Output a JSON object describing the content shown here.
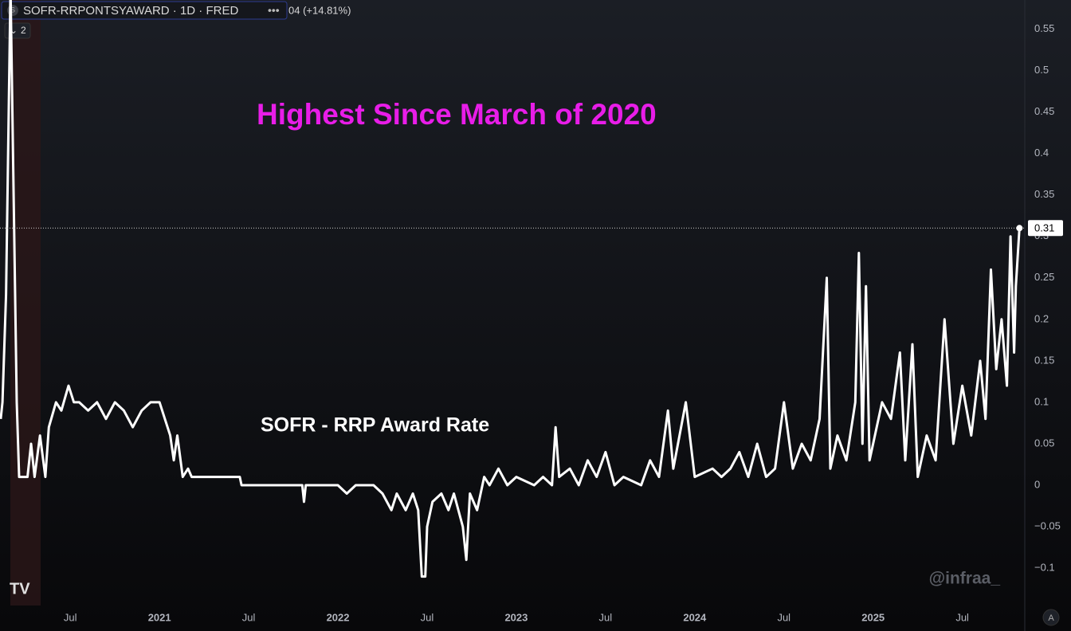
{
  "header": {
    "symbol": "SOFR-RRPONTSYAWARD · 1D · FRED",
    "change": "04 (+14.81%)",
    "badge": "2",
    "watermark": "@infraa_",
    "scale_button": "A"
  },
  "chart_data": {
    "type": "line",
    "annotations": [
      "Highest Since March of 2020",
      "SOFR - RRP Award Rate"
    ],
    "xlim": [
      2020.106,
      2025.85
    ],
    "xticks": [
      {
        "value": 2020.5,
        "label": "Jul"
      },
      2021,
      {
        "value": 2021.5,
        "label": "Jul"
      },
      2022,
      {
        "value": 2022.5,
        "label": "Jul"
      },
      2023,
      {
        "value": 2023.5,
        "label": "Jul"
      },
      2024,
      {
        "value": 2024.5,
        "label": "Jul"
      },
      2025,
      {
        "value": 2025.5,
        "label": "Jul"
      }
    ],
    "ylim": [
      -0.145,
      0.585
    ],
    "yticks": [
      {
        "value": -0.1,
        "label": "−0.1"
      },
      {
        "value": -0.05,
        "label": "−0.05"
      },
      0,
      0.05,
      0.1,
      0.15,
      0.2,
      0.25,
      0.3,
      0.35,
      0.4,
      0.45,
      0.5,
      0.55
    ],
    "x": [
      2020.11,
      2020.12,
      2020.14,
      2020.165,
      2020.2,
      2020.213,
      2020.26,
      2020.28,
      2020.3,
      2020.33,
      2020.36,
      2020.38,
      2020.42,
      2020.45,
      2020.49,
      2020.52,
      2020.55,
      2020.6,
      2020.65,
      2020.7,
      2020.75,
      2020.8,
      2020.85,
      2020.9,
      2020.95,
      2021.0,
      2021.03,
      2021.06,
      2021.08,
      2021.1,
      2021.13,
      2021.16,
      2021.18,
      2021.3,
      2021.45,
      2021.46,
      2021.6,
      2021.8,
      2021.81,
      2021.82,
      2022.0,
      2022.05,
      2022.1,
      2022.2,
      2022.25,
      2022.3,
      2022.33,
      2022.38,
      2022.42,
      2022.45,
      2022.47,
      2022.49,
      2022.5,
      2022.53,
      2022.58,
      2022.62,
      2022.65,
      2022.7,
      2022.72,
      2022.74,
      2022.78,
      2022.82,
      2022.85,
      2022.9,
      2022.95,
      2023.0,
      2023.1,
      2023.15,
      2023.2,
      2023.22,
      2023.24,
      2023.3,
      2023.35,
      2023.4,
      2023.45,
      2023.5,
      2023.55,
      2023.6,
      2023.7,
      2023.75,
      2023.8,
      2023.85,
      2023.88,
      2023.95,
      2024.0,
      2024.1,
      2024.15,
      2024.2,
      2024.25,
      2024.3,
      2024.35,
      2024.4,
      2024.45,
      2024.5,
      2024.55,
      2024.6,
      2024.65,
      2024.7,
      2024.74,
      2024.76,
      2024.8,
      2024.85,
      2024.9,
      2024.92,
      2024.94,
      2024.96,
      2024.98,
      2025.05,
      2025.1,
      2025.15,
      2025.18,
      2025.22,
      2025.25,
      2025.3,
      2025.35,
      2025.4,
      2025.45,
      2025.5,
      2025.55,
      2025.6,
      2025.63,
      2025.66,
      2025.69,
      2025.72,
      2025.75,
      2025.77,
      2025.79,
      2025.8,
      2025.82
    ],
    "series": [
      {
        "name": "SOFR - RRP Award Rate",
        "color": "#ffffff",
        "values": [
          0.08,
          0.1,
          0.23,
          0.6,
          0.1,
          0.01,
          0.01,
          0.05,
          0.01,
          0.06,
          0.01,
          0.07,
          0.1,
          0.09,
          0.12,
          0.1,
          0.1,
          0.09,
          0.1,
          0.08,
          0.1,
          0.09,
          0.07,
          0.09,
          0.1,
          0.1,
          0.08,
          0.06,
          0.03,
          0.06,
          0.01,
          0.02,
          0.01,
          0.01,
          0.01,
          0,
          0,
          0,
          -0.02,
          0,
          0,
          -0.01,
          0,
          0,
          -0.01,
          -0.03,
          -0.01,
          -0.03,
          -0.01,
          -0.03,
          -0.11,
          -0.11,
          -0.05,
          -0.02,
          -0.01,
          -0.03,
          -0.01,
          -0.05,
          -0.09,
          -0.01,
          -0.03,
          0.01,
          0,
          0.02,
          0,
          0.01,
          0,
          0.01,
          0,
          0.07,
          0.01,
          0.02,
          0,
          0.03,
          0.01,
          0.04,
          0,
          0.01,
          0,
          0.03,
          0.01,
          0.09,
          0.02,
          0.1,
          0.01,
          0.02,
          0.01,
          0.02,
          0.04,
          0.01,
          0.05,
          0.01,
          0.02,
          0.1,
          0.02,
          0.05,
          0.03,
          0.08,
          0.25,
          0.02,
          0.06,
          0.03,
          0.1,
          0.28,
          0.05,
          0.24,
          0.03,
          0.1,
          0.08,
          0.16,
          0.03,
          0.17,
          0.01,
          0.06,
          0.03,
          0.2,
          0.05,
          0.12,
          0.06,
          0.15,
          0.08,
          0.26,
          0.14,
          0.2,
          0.12,
          0.3,
          0.16,
          0.24,
          0.31
        ]
      }
    ]
  }
}
